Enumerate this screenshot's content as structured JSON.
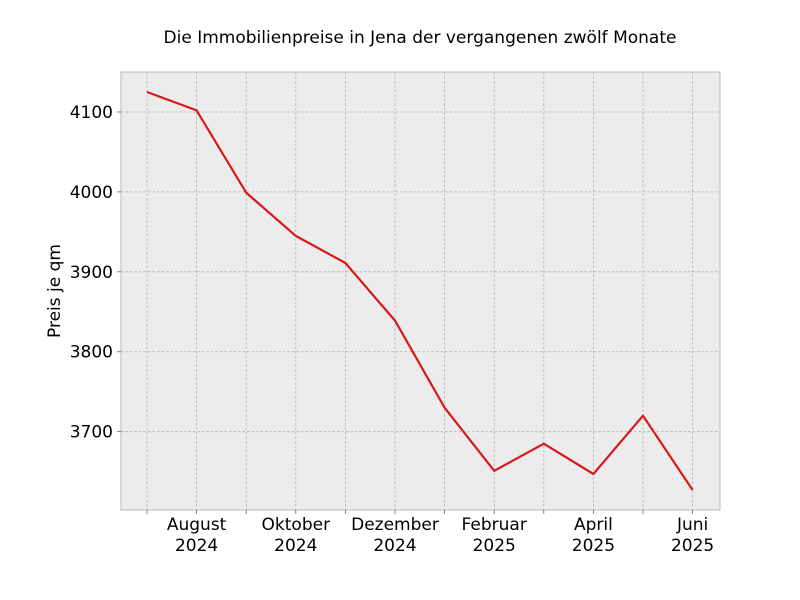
{
  "chart_data": {
    "type": "line",
    "title": "Die Immobilienpreise in Jena der vergangenen zwölf Monate",
    "xlabel": "",
    "ylabel": "Preis je qm",
    "x": [
      "2024-07",
      "2024-08",
      "2024-09",
      "2024-10",
      "2024-11",
      "2024-12",
      "2025-01",
      "2025-02",
      "2025-03",
      "2025-04",
      "2025-05",
      "2025-06"
    ],
    "x_tick_labels": [
      {
        "x": "2024-08",
        "line1": "August",
        "line2": "2024"
      },
      {
        "x": "2024-10",
        "line1": "Oktober",
        "line2": "2024"
      },
      {
        "x": "2024-12",
        "line1": "Dezember",
        "line2": "2024"
      },
      {
        "x": "2025-02",
        "line1": "Februar",
        "line2": "2025"
      },
      {
        "x": "2025-04",
        "line1": "April",
        "line2": "2025"
      },
      {
        "x": "2025-06",
        "line1": "Juni",
        "line2": "2025"
      }
    ],
    "series": [
      {
        "values": [
          4125,
          4102,
          3999,
          3945,
          3911,
          3839,
          3730,
          3651,
          3685,
          3647,
          3720,
          3627
        ]
      }
    ],
    "ylim": [
      3602,
      4150
    ],
    "yticks": [
      3700,
      3800,
      3900,
      4000,
      4100
    ],
    "grid": true,
    "colors": {
      "line": "#d7191c",
      "plot_bg": "#ececec",
      "grid": "#b0b0b0"
    }
  }
}
